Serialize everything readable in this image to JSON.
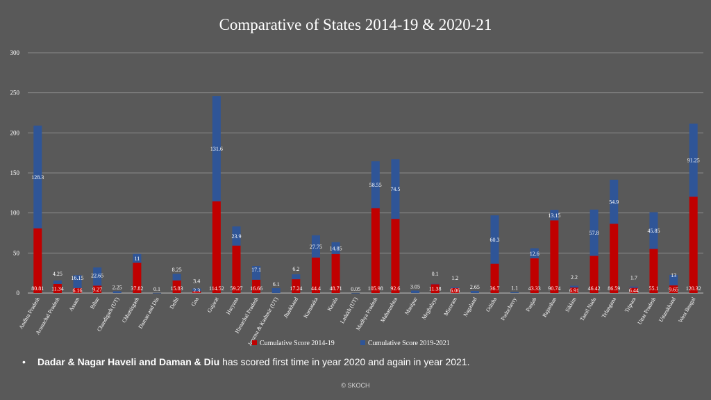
{
  "chart_data": {
    "type": "bar",
    "stacked": true,
    "title": "Comparative of States 2014-19 & 2020-21",
    "xlabel": "",
    "ylabel": "",
    "ylim": [
      0,
      300
    ],
    "yticks": [
      0,
      50,
      100,
      150,
      200,
      250,
      300
    ],
    "grid": true,
    "legend": "bottom",
    "categories": [
      "Andhra Pradesh",
      "Arunachal Pradesh",
      "Assam",
      "Bihar",
      "Chandigarh (UT)",
      "Chhattisgarh",
      "Daman and Diu",
      "Delhi",
      "Goa",
      "Gujarat",
      "Haryana",
      "Himachal Pradesh",
      "Jammu & Kashmir (UT)",
      "Jharkhand",
      "Karnataka",
      "Kerala",
      "Ladakh (UT)",
      "Madhya Pradesh",
      "Maharashtra",
      "Manipur",
      "Meghalaya",
      "Mizoram",
      "Nagaland",
      "Odisha",
      "Puducherry",
      "Punjab",
      "Rajasthan",
      "Sikkim",
      "Tamil Nadu",
      "Telangana",
      "Tripura",
      "Uttar Pradesh",
      "Uttarakhand",
      "West Bengal"
    ],
    "series": [
      {
        "name": "Cumulative Score 2014-19",
        "color": "#c00000",
        "values": [
          80.81,
          11.34,
          6.16,
          9.27,
          0,
          37.82,
          0,
          15.83,
          2.3,
          114.52,
          59.27,
          16.66,
          0,
          17.24,
          44.4,
          48.71,
          0,
          105.98,
          92.6,
          0,
          11.38,
          6.06,
          0,
          36.7,
          0,
          43.33,
          90.74,
          6.91,
          46.42,
          86.59,
          6.44,
          55.1,
          9.65,
          120.32
        ],
        "labels": [
          "80.81",
          "11.34",
          "6.16",
          "9.27",
          "",
          "37.82",
          "",
          "15.83",
          "2.3",
          "114.52",
          "59.27",
          "16.66",
          "",
          "17.24",
          "44.4",
          "48.71",
          "",
          "105.98",
          "92.6",
          "",
          "11.38",
          "6.06",
          "",
          "36.7",
          "",
          "43.33",
          "90.74",
          "6.91",
          "46.42",
          "86.59",
          "6.44",
          "55.1",
          "9.65",
          "120.32"
        ]
      },
      {
        "name": "Cumulative Score 2019-2021",
        "color": "#2f5597",
        "values": [
          128.3,
          4.25,
          16.15,
          22.65,
          2.25,
          11,
          0.1,
          8.25,
          3.4,
          131.6,
          23.9,
          17.1,
          6.1,
          6.2,
          27.75,
          14.85,
          0.05,
          58.55,
          74.5,
          3.05,
          0.1,
          1.2,
          2.65,
          60.3,
          1.1,
          12.6,
          13.15,
          2.2,
          57.8,
          54.9,
          1.7,
          45.85,
          13,
          91.25
        ],
        "labels": [
          "128.3",
          "4.25",
          "16.15",
          "22.65",
          "2.25",
          "11",
          "0.1",
          "8.25",
          "3.4",
          "131.6",
          "23.9",
          "17.1",
          "6.1",
          "6.2",
          "27.75",
          "14.85",
          "0.05",
          "58.55",
          "74.5",
          "3.05",
          "0.1",
          "1.2",
          "2.65",
          "60.3",
          "1.1",
          "12.6",
          "13.15",
          "2.2",
          "57.8",
          "54.9",
          "1.7",
          "45.85",
          "13",
          "91.25"
        ]
      }
    ]
  },
  "note": {
    "bullet": "•",
    "bold_text": "Dadar & Nagar Haveli and Daman & Diu",
    "text": " has scored first time in year 2020 and again in year 2021."
  },
  "footer": "© SKOCH"
}
